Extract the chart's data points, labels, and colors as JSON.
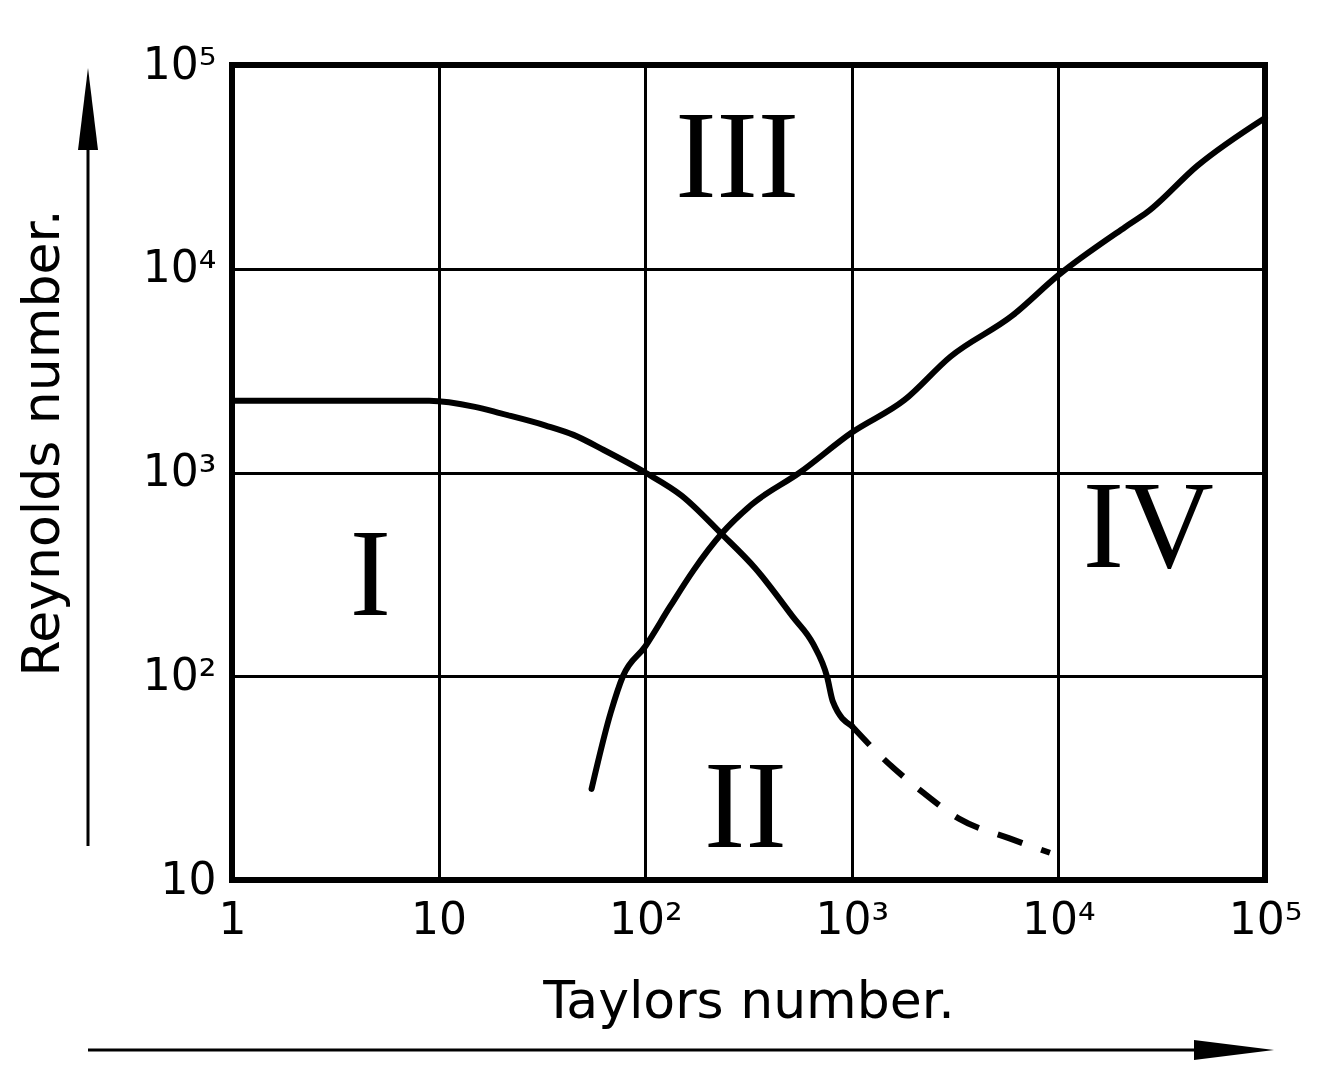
{
  "chart_data": {
    "type": "line",
    "xlabel": "Taylors number.",
    "ylabel": "Reynolds number.",
    "log": "xy",
    "grid": true,
    "xlim": [
      1,
      100000
    ],
    "ylim": [
      10,
      100000
    ],
    "xticks": [
      1,
      10,
      {
        "value": 100,
        "label": "10²"
      },
      {
        "value": 1000,
        "label": "10³"
      },
      {
        "value": 10000,
        "label": "10⁴"
      },
      {
        "value": 100000,
        "label": "10⁵"
      }
    ],
    "yticks": [
      10,
      {
        "value": 100,
        "label": "10²"
      },
      {
        "value": 1000,
        "label": "10³"
      },
      {
        "value": 10000,
        "label": "10⁴"
      },
      {
        "value": 100000,
        "label": "10⁵"
      }
    ],
    "series": [
      {
        "color": "#000000",
        "line_style": "solid",
        "x": [
          1,
          4,
          9,
          15,
          20,
          33,
          45,
          63,
          100,
          150,
          234,
          340,
          520,
          650,
          760,
          810,
          1000
        ],
        "values": [
          2250,
          2250,
          2250,
          2100,
          1950,
          1700,
          1530,
          1290,
          1000,
          770,
          500,
          340,
          195,
          144,
          99,
          75,
          57
        ]
      },
      {
        "color": "#000000",
        "line_style": "dashed",
        "x": [
          1000,
          1400,
          2200,
          3300,
          5800,
          9100
        ],
        "values": [
          57,
          40,
          27,
          20,
          16,
          13.6
        ]
      },
      {
        "color": "#000000",
        "line_style": "solid",
        "x": [
          55,
          68,
          78,
          100,
          132,
          171,
          234,
          330,
          560,
          1000,
          1800,
          3000,
          6000,
          10000,
          21000,
          27000,
          47000,
          100000
        ],
        "values": [
          28,
          66,
          100,
          140,
          220,
          330,
          500,
          700,
          1000,
          1570,
          2270,
          3700,
          5900,
          9300,
          16000,
          19000,
          32000,
          55000
        ]
      }
    ],
    "annotations": [
      "I",
      "II",
      "III",
      "IV"
    ]
  }
}
